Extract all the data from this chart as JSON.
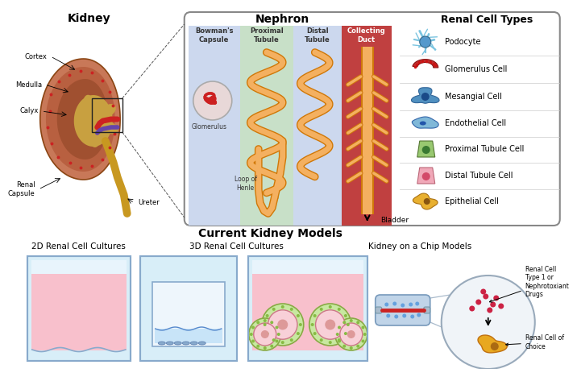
{
  "bg_color": "#ffffff",
  "kidney_title": "Kidney",
  "nephron_title": "Nephron",
  "renal_title": "Renal Cell Types",
  "models_title": "Current Kidney Models",
  "kidney_labels": [
    "Cortex",
    "Medulla",
    "Calyx",
    "Renal\nCapsule",
    "Ureter"
  ],
  "nephron_section_labels": [
    "Bowman's\nCapsule",
    "Proximal\nTubule",
    "Distal\nTubule",
    "Collecting\nDuct"
  ],
  "nephron_other_labels": [
    "Glomerulus",
    "Loop of\nHenle",
    "Bladder"
  ],
  "renal_cell_types": [
    "Podocyte",
    "Glomerulus Cell",
    "Mesangial Cell",
    "Endothelial Cell",
    "Proximal Tubule Cell",
    "Distal Tubule Cell",
    "Epithelial Cell"
  ],
  "renal_cell_colors": [
    "#7ac4e0",
    "#c03030",
    "#5090c0",
    "#80b8d8",
    "#98c870",
    "#f0a8b8",
    "#e8b030"
  ],
  "model_labels": [
    "2D Renal Cell Cultures",
    "3D Renal Cell Cultures",
    "Kidney on a Chip Models"
  ],
  "chip_labels": [
    "Renal Cell\nType 1 or\nNephrotoxiant\nDrugs",
    "Renal Cell of\nChoice"
  ],
  "nephron_bg_colors": [
    "#ccd8ee",
    "#c8e0c8",
    "#ccd8ee",
    "#c04040"
  ],
  "box_border": "#888888",
  "orange_tube": "#f0920a",
  "orange_dark": "#d07808"
}
